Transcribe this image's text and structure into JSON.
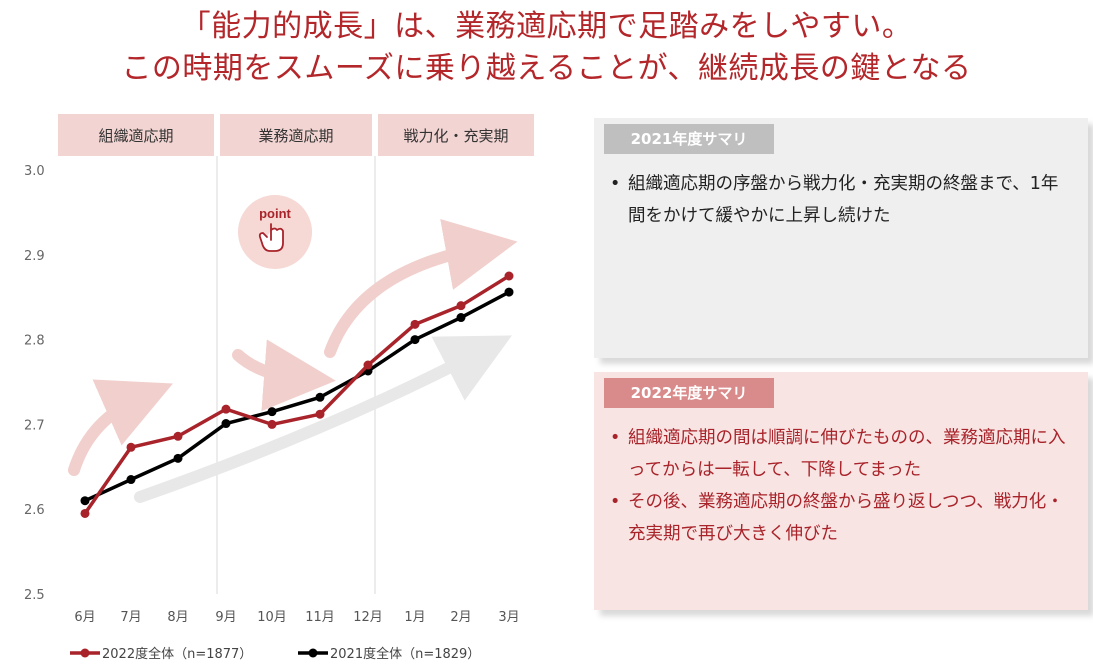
{
  "title": {
    "line1": "「能力的成長」は、業務適応期で足踏みをしやすい。",
    "line2": "この時期をスムーズに乗り越えることが、継続成長の鍵となる"
  },
  "chart_data": {
    "type": "line",
    "categories": [
      "6月",
      "7月",
      "8月",
      "9月",
      "10月",
      "11月",
      "12月",
      "1月",
      "2月",
      "3月"
    ],
    "series": [
      {
        "name": "2022度全体（n=1877）",
        "color": "#a8232a",
        "values": [
          2.595,
          2.673,
          2.686,
          2.718,
          2.7,
          2.712,
          2.77,
          2.818,
          2.84,
          2.875
        ]
      },
      {
        "name": "2021度全体（n=1829）",
        "color": "#000000",
        "values": [
          2.61,
          2.635,
          2.66,
          2.701,
          2.715,
          2.732,
          2.763,
          2.8,
          2.826,
          2.856
        ]
      }
    ],
    "yticks": [
      "3.0",
      "2.9",
      "2.8",
      "2.7",
      "2.6",
      "2.5"
    ],
    "ylim": [
      2.5,
      3.0
    ],
    "phases": [
      {
        "label": "組織適応期",
        "from": 0,
        "to": 2
      },
      {
        "label": "業務適応期",
        "from": 3,
        "to": 5
      },
      {
        "label": "戦力化・充実期",
        "from": 6,
        "to": 9
      }
    ],
    "point_label": "point",
    "legend_position": "bottom"
  },
  "summary2021": {
    "heading": "2021年度サマリ",
    "bullets": [
      "組織適応期の序盤から戦力化・充実期の終盤まで、1年間をかけて緩やかに上昇し続けた"
    ]
  },
  "summary2022": {
    "heading": "2022年度サマリ",
    "bullets": [
      "組織適応期の間は順調に伸びたものの、業務適応期に入ってからは一転して、下降してまった",
      "その後、業務適応期の終盤から盛り返しつつ、戦力化・充実期で再び大きく伸びた"
    ]
  }
}
